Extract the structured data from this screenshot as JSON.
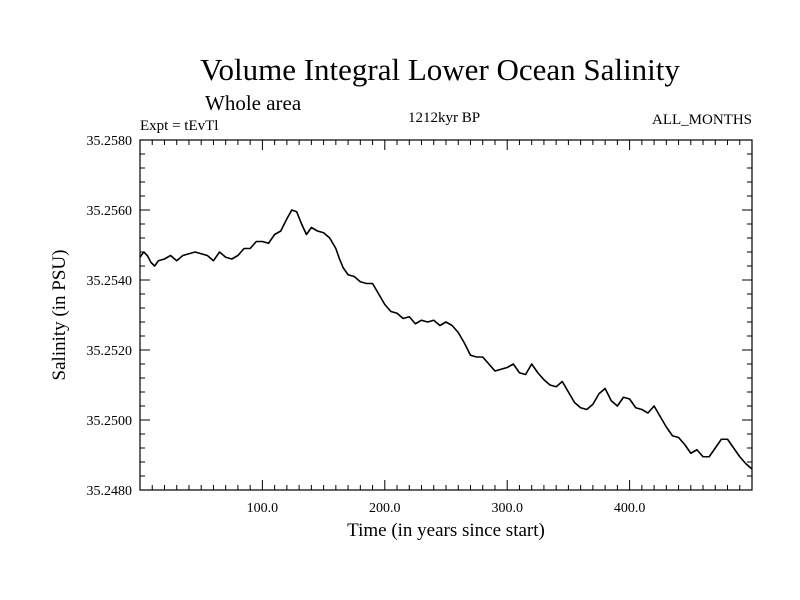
{
  "chart_data": {
    "type": "line",
    "title": "Volume Integral Lower Ocean Salinity",
    "subtitle": "Whole area",
    "experiment_label": "Expt = tEvTl",
    "period_label": "1212kyr BP",
    "months_label": "ALL_MONTHS",
    "xlabel": "Time (in years since start)",
    "ylabel": "Salinity (in PSU)",
    "xlim": [
      0,
      500
    ],
    "ylim": [
      35.248,
      35.258
    ],
    "xticks": [
      100,
      200,
      300,
      400
    ],
    "xtick_labels": [
      "100.0",
      "200.0",
      "300.0",
      "400.0"
    ],
    "yticks": [
      35.248,
      35.25,
      35.252,
      35.254,
      35.256,
      35.258
    ],
    "ytick_labels": [
      "35.2480",
      "35.2500",
      "35.2520",
      "35.2540",
      "35.2560",
      "35.2580"
    ],
    "series": [
      {
        "name": "salinity",
        "color": "#000000",
        "x": [
          0,
          3,
          6,
          9,
          12,
          15,
          20,
          25,
          30,
          35,
          40,
          45,
          50,
          55,
          60,
          65,
          70,
          75,
          80,
          85,
          90,
          95,
          100,
          105,
          110,
          115,
          120,
          124,
          128,
          132,
          136,
          140,
          145,
          150,
          155,
          160,
          163,
          166,
          170,
          175,
          180,
          185,
          190,
          195,
          200,
          205,
          210,
          215,
          220,
          225,
          230,
          235,
          240,
          245,
          250,
          255,
          260,
          265,
          270,
          275,
          280,
          285,
          290,
          295,
          300,
          305,
          310,
          315,
          320,
          325,
          330,
          335,
          340,
          345,
          350,
          355,
          360,
          365,
          370,
          375,
          380,
          385,
          390,
          395,
          400,
          405,
          410,
          415,
          420,
          425,
          430,
          435,
          440,
          445,
          450,
          455,
          460,
          465,
          470,
          475,
          480,
          485,
          490,
          495,
          500
        ],
        "values": [
          35.25465,
          35.2548,
          35.2547,
          35.2545,
          35.2544,
          35.25455,
          35.2546,
          35.2547,
          35.25455,
          35.2547,
          35.25475,
          35.2548,
          35.25475,
          35.2547,
          35.25455,
          35.2548,
          35.25465,
          35.2546,
          35.2547,
          35.2549,
          35.2549,
          35.2551,
          35.2551,
          35.25505,
          35.2553,
          35.2554,
          35.25575,
          35.256,
          35.25595,
          35.2556,
          35.2553,
          35.2555,
          35.2554,
          35.25535,
          35.2552,
          35.2549,
          35.2546,
          35.25435,
          35.25415,
          35.2541,
          35.25395,
          35.2539,
          35.2539,
          35.2536,
          35.2533,
          35.2531,
          35.25305,
          35.2529,
          35.25295,
          35.25275,
          35.25285,
          35.2528,
          35.25285,
          35.2527,
          35.2528,
          35.2527,
          35.2525,
          35.2522,
          35.25185,
          35.2518,
          35.2518,
          35.2516,
          35.2514,
          35.25145,
          35.2515,
          35.2516,
          35.25135,
          35.2513,
          35.2516,
          35.25135,
          35.25115,
          35.251,
          35.25095,
          35.2511,
          35.2508,
          35.2505,
          35.25035,
          35.2503,
          35.25045,
          35.25075,
          35.2509,
          35.25055,
          35.2504,
          35.25065,
          35.2506,
          35.25035,
          35.2503,
          35.2502,
          35.2504,
          35.2501,
          35.2498,
          35.24955,
          35.2495,
          35.2493,
          35.24905,
          35.24915,
          35.24895,
          35.24895,
          35.2492,
          35.24945,
          35.24945,
          35.2492,
          35.24895,
          35.24875,
          35.2486
        ]
      }
    ]
  }
}
